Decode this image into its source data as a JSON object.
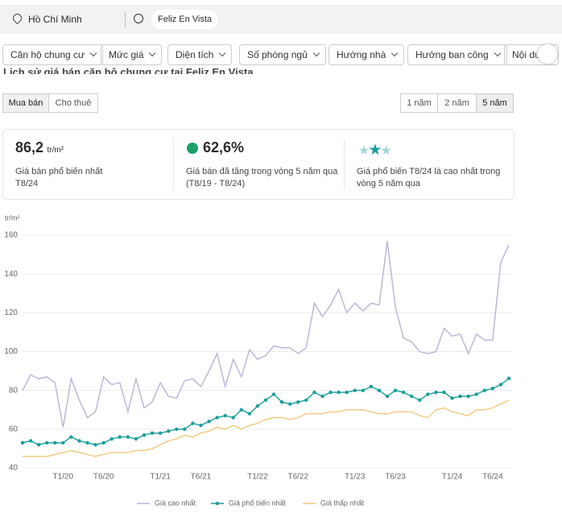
{
  "header": {
    "location": "Hồ Chí Minh",
    "search": "Feliz En Vista"
  },
  "filters": [
    "Căn hộ chung cư",
    "Mức giá",
    "Diện tích",
    "Số phòng ngủ",
    "Hướng nhà",
    "Hướng ban công",
    "Nội du"
  ],
  "section_title": "Lịch sử giá bán căn hộ chung cư tại Feliz En Vista",
  "tabs": [
    "Mua bán",
    "Cho thuê"
  ],
  "periods": [
    "1 năm",
    "2 năm",
    "5 năm"
  ],
  "stats": [
    {
      "value": "86,2",
      "unit": "tr/m²",
      "text": "Giá bán phổ biến nhất",
      "sub": "T8/24"
    },
    {
      "value": "62,6%",
      "text": "Giá bán đã tăng trong vòng 5 năm qua",
      "sub": "(T8/19 - T8/24)"
    },
    {
      "text": "Giá phổ biến T8/24 là cao nhất trong vòng 5 năm qua"
    }
  ],
  "chart_data": {
    "type": "line",
    "y_label": "tr/m²",
    "categories": [
      null,
      null,
      null,
      null,
      null,
      "T1/20",
      null,
      null,
      null,
      null,
      "T6/20",
      null,
      null,
      null,
      null,
      null,
      null,
      "T1/21",
      null,
      null,
      null,
      null,
      "T6/21",
      null,
      null,
      null,
      null,
      null,
      null,
      "T1/22",
      null,
      null,
      null,
      null,
      "T6/22",
      null,
      null,
      null,
      null,
      null,
      null,
      "T1/23",
      null,
      null,
      null,
      null,
      "T6/23",
      null,
      null,
      null,
      null,
      null,
      null,
      "T1/24",
      null,
      null,
      null,
      null,
      "T6/24",
      null,
      null
    ],
    "ylim": [
      40,
      160
    ],
    "yticks": [
      40,
      60,
      80,
      100,
      120,
      140,
      160
    ],
    "grid": true,
    "series": [
      {
        "name": "Giá cao nhất",
        "color": "#b9b4d6",
        "markers": false,
        "values": [
          80,
          88,
          86,
          87,
          84,
          61,
          86,
          75,
          66,
          69,
          87,
          83,
          84,
          69,
          86,
          71,
          74,
          84,
          77,
          76,
          85,
          86,
          82,
          90,
          99,
          82,
          96,
          87,
          101,
          96,
          98,
          103,
          102,
          102,
          99,
          102,
          125,
          118,
          124,
          132,
          120,
          125,
          121,
          125,
          124,
          157,
          123,
          107,
          105,
          100,
          99,
          100,
          112,
          108,
          109,
          99,
          109,
          106,
          106,
          146,
          155
        ]
      },
      {
        "name": "Giá phổ biến nhất",
        "color": "#1a9e9a",
        "markers": true,
        "values": [
          53,
          54,
          52,
          53,
          53,
          53,
          56,
          54,
          53,
          52,
          53,
          55,
          56,
          56,
          55,
          57,
          58,
          58,
          59,
          60,
          60,
          63,
          62,
          64,
          66,
          67,
          66,
          70,
          68,
          72,
          75,
          78,
          74,
          73,
          74,
          75,
          79,
          77,
          79,
          79,
          79,
          80,
          80,
          82,
          80,
          77,
          80,
          79,
          77,
          75,
          78,
          79,
          79,
          76,
          77,
          77,
          78,
          80,
          81,
          83,
          86.2
        ]
      },
      {
        "name": "Giá thấp nhất",
        "color": "#f5c77e",
        "markers": false,
        "values": [
          46,
          46,
          46,
          46,
          47,
          48,
          49,
          48,
          47,
          46,
          47,
          48,
          48,
          48,
          49,
          49,
          50,
          52,
          54,
          55,
          57,
          56,
          58,
          59,
          61,
          60,
          62,
          60,
          62,
          63,
          65,
          66,
          66,
          65,
          66,
          68,
          68,
          68,
          69,
          69,
          70,
          70,
          70,
          69,
          68,
          68,
          69,
          69,
          69,
          67,
          66,
          70,
          71,
          69,
          68,
          67,
          70,
          70,
          71,
          73,
          75
        ]
      }
    ]
  }
}
